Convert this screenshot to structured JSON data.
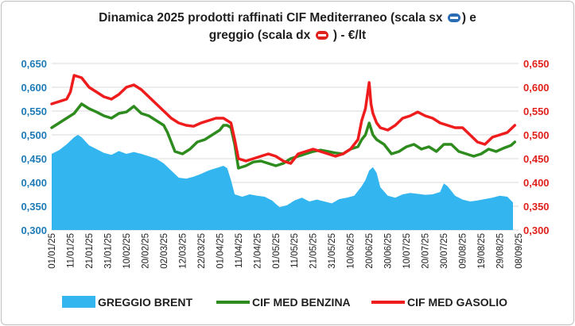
{
  "chart_data": {
    "type": "area",
    "title_line1": "Dinamica 2025 prodotti raffinati CIF Mediterraneo (scala sx",
    "title_mid": ") e",
    "title_line2a": "greggio (scala dx",
    "title_line2b": ") - €/lt",
    "title_icon_left": "left-arrow-icon",
    "title_icon_right": "right-arrow-icon",
    "y_left": {
      "ticks": [
        "0,300",
        "0,350",
        "0,400",
        "0,450",
        "0,500",
        "0,550",
        "0,600",
        "0,650"
      ],
      "min": 0.3,
      "max": 0.65,
      "color": "#1f7bb6"
    },
    "y_right": {
      "ticks": [
        "0,300",
        "0,350",
        "0,400",
        "0,450",
        "0,500",
        "0,550",
        "0,600",
        "0,650"
      ],
      "min": 0.3,
      "max": 0.65,
      "color": "#e0201b"
    },
    "x_ticks": [
      "01/01/25",
      "11/01/25",
      "21/01/25",
      "31/01/25",
      "10/02/25",
      "20/02/25",
      "02/03/25",
      "12/03/25",
      "22/03/25",
      "01/04/25",
      "11/04/25",
      "21/04/25",
      "01/05/25",
      "11/05/25",
      "21/05/25",
      "31/05/25",
      "10/06/25",
      "20/06/25",
      "30/06/25",
      "10/07/25",
      "20/07/25",
      "30/07/25",
      "09/08/25",
      "19/08/25",
      "29/08/25",
      "08/09/25"
    ],
    "x_start": "01/01/25",
    "x_end": "08/09/25",
    "grid": true,
    "legend_position": "bottom",
    "series": [
      {
        "name": "GREGGIO BRENT",
        "kind": "area",
        "axis": "right",
        "color": "#33b5ef",
        "x": [
          "01/01/25",
          "05/01/25",
          "09/01/25",
          "13/01/25",
          "15/01/25",
          "17/01/25",
          "21/01/25",
          "25/01/25",
          "29/01/25",
          "02/02/25",
          "06/02/25",
          "10/02/25",
          "14/02/25",
          "18/02/25",
          "22/02/25",
          "26/02/25",
          "02/03/25",
          "06/03/25",
          "10/03/25",
          "14/03/25",
          "18/03/25",
          "22/03/25",
          "26/03/25",
          "30/03/25",
          "03/04/25",
          "05/04/25",
          "07/04/25",
          "09/04/25",
          "13/04/25",
          "17/04/25",
          "21/04/25",
          "25/04/25",
          "29/04/25",
          "03/05/25",
          "07/05/25",
          "11/05/25",
          "15/05/25",
          "19/05/25",
          "23/05/25",
          "27/05/25",
          "31/05/25",
          "04/06/25",
          "08/06/25",
          "12/06/25",
          "16/06/25",
          "18/06/25",
          "20/06/25",
          "22/06/25",
          "24/06/25",
          "26/06/25",
          "30/06/25",
          "04/07/25",
          "08/07/25",
          "12/07/25",
          "16/07/25",
          "20/07/25",
          "24/07/25",
          "28/07/25",
          "30/07/25",
          "01/08/25",
          "05/08/25",
          "09/08/25",
          "13/08/25",
          "17/08/25",
          "21/08/25",
          "25/08/25",
          "29/08/25",
          "02/09/25",
          "05/09/25"
        ],
        "values": [
          0.46,
          0.468,
          0.48,
          0.495,
          0.5,
          0.495,
          0.478,
          0.47,
          0.462,
          0.458,
          0.466,
          0.46,
          0.464,
          0.46,
          0.455,
          0.45,
          0.44,
          0.425,
          0.41,
          0.408,
          0.412,
          0.418,
          0.425,
          0.43,
          0.435,
          0.43,
          0.405,
          0.375,
          0.37,
          0.375,
          0.372,
          0.37,
          0.362,
          0.348,
          0.352,
          0.362,
          0.368,
          0.36,
          0.364,
          0.36,
          0.356,
          0.365,
          0.368,
          0.372,
          0.392,
          0.405,
          0.425,
          0.432,
          0.42,
          0.39,
          0.372,
          0.368,
          0.375,
          0.378,
          0.376,
          0.374,
          0.375,
          0.38,
          0.398,
          0.392,
          0.372,
          0.364,
          0.36,
          0.362,
          0.365,
          0.368,
          0.372,
          0.37,
          0.358
        ]
      },
      {
        "name": "CIF MED BENZINA",
        "kind": "line",
        "axis": "left",
        "color": "#2e8b1e",
        "x": [
          "01/01/25",
          "05/01/25",
          "09/01/25",
          "13/01/25",
          "17/01/25",
          "21/01/25",
          "25/01/25",
          "29/01/25",
          "02/02/25",
          "06/02/25",
          "10/02/25",
          "14/02/25",
          "18/02/25",
          "22/02/25",
          "26/02/25",
          "02/03/25",
          "04/03/25",
          "08/03/25",
          "12/03/25",
          "16/03/25",
          "20/03/25",
          "24/03/25",
          "28/03/25",
          "01/04/25",
          "03/04/25",
          "05/04/25",
          "07/04/25",
          "09/04/25",
          "11/04/25",
          "15/04/25",
          "19/04/25",
          "23/04/25",
          "27/04/25",
          "01/05/25",
          "05/05/25",
          "09/05/25",
          "13/05/25",
          "17/05/25",
          "21/05/25",
          "25/05/25",
          "29/05/25",
          "02/06/25",
          "06/06/25",
          "10/06/25",
          "14/06/25",
          "16/06/25",
          "18/06/25",
          "20/06/25",
          "22/06/25",
          "24/06/25",
          "26/06/25",
          "28/06/25",
          "02/07/25",
          "06/07/25",
          "10/07/25",
          "14/07/25",
          "18/07/25",
          "22/07/25",
          "26/07/25",
          "30/07/25",
          "03/08/25",
          "07/08/25",
          "11/08/25",
          "15/08/25",
          "19/08/25",
          "23/08/25",
          "27/08/25",
          "31/08/25",
          "04/09/25",
          "06/09/25"
        ],
        "values": [
          0.515,
          0.525,
          0.535,
          0.545,
          0.565,
          0.555,
          0.548,
          0.54,
          0.535,
          0.545,
          0.548,
          0.56,
          0.545,
          0.54,
          0.53,
          0.52,
          0.505,
          0.465,
          0.46,
          0.47,
          0.485,
          0.49,
          0.5,
          0.51,
          0.52,
          0.52,
          0.515,
          0.48,
          0.43,
          0.435,
          0.443,
          0.445,
          0.44,
          0.435,
          0.44,
          0.45,
          0.455,
          0.46,
          0.465,
          0.468,
          0.465,
          0.462,
          0.46,
          0.47,
          0.475,
          0.49,
          0.5,
          0.525,
          0.5,
          0.49,
          0.485,
          0.48,
          0.46,
          0.465,
          0.475,
          0.48,
          0.47,
          0.475,
          0.465,
          0.48,
          0.48,
          0.465,
          0.46,
          0.455,
          0.46,
          0.47,
          0.465,
          0.472,
          0.478,
          0.485
        ]
      },
      {
        "name": "CIF MED GASOLIO",
        "kind": "line",
        "axis": "left",
        "color": "#ee1c1c",
        "x": [
          "01/01/25",
          "05/01/25",
          "09/01/25",
          "11/01/25",
          "13/01/25",
          "17/01/25",
          "21/01/25",
          "25/01/25",
          "29/01/25",
          "02/02/25",
          "06/02/25",
          "10/02/25",
          "14/02/25",
          "18/02/25",
          "22/02/25",
          "26/02/25",
          "02/03/25",
          "06/03/25",
          "10/03/25",
          "14/03/25",
          "18/03/25",
          "22/03/25",
          "26/03/25",
          "30/03/25",
          "03/04/25",
          "07/04/25",
          "09/04/25",
          "11/04/25",
          "15/04/25",
          "19/04/25",
          "23/04/25",
          "27/04/25",
          "01/05/25",
          "05/05/25",
          "09/05/25",
          "13/05/25",
          "17/05/25",
          "21/05/25",
          "25/05/25",
          "29/05/25",
          "02/06/25",
          "06/06/25",
          "10/06/25",
          "14/06/25",
          "16/06/25",
          "18/06/25",
          "20/06/25",
          "21/06/25",
          "22/06/25",
          "24/06/25",
          "26/06/25",
          "30/06/25",
          "04/07/25",
          "08/07/25",
          "12/07/25",
          "16/07/25",
          "20/07/25",
          "24/07/25",
          "28/07/25",
          "01/08/25",
          "05/08/25",
          "09/08/25",
          "13/08/25",
          "17/08/25",
          "21/08/25",
          "25/08/25",
          "29/08/25",
          "02/09/25",
          "06/09/25"
        ],
        "values": [
          0.565,
          0.57,
          0.575,
          0.59,
          0.625,
          0.62,
          0.6,
          0.59,
          0.58,
          0.575,
          0.585,
          0.6,
          0.605,
          0.595,
          0.58,
          0.565,
          0.55,
          0.535,
          0.525,
          0.52,
          0.518,
          0.525,
          0.53,
          0.535,
          0.535,
          0.525,
          0.49,
          0.45,
          0.445,
          0.45,
          0.455,
          0.46,
          0.455,
          0.445,
          0.44,
          0.46,
          0.465,
          0.47,
          0.465,
          0.46,
          0.455,
          0.46,
          0.47,
          0.49,
          0.53,
          0.555,
          0.61,
          0.565,
          0.545,
          0.525,
          0.515,
          0.51,
          0.52,
          0.535,
          0.54,
          0.548,
          0.54,
          0.535,
          0.525,
          0.52,
          0.515,
          0.515,
          0.5,
          0.485,
          0.48,
          0.495,
          0.5,
          0.505,
          0.52
        ]
      }
    ]
  }
}
